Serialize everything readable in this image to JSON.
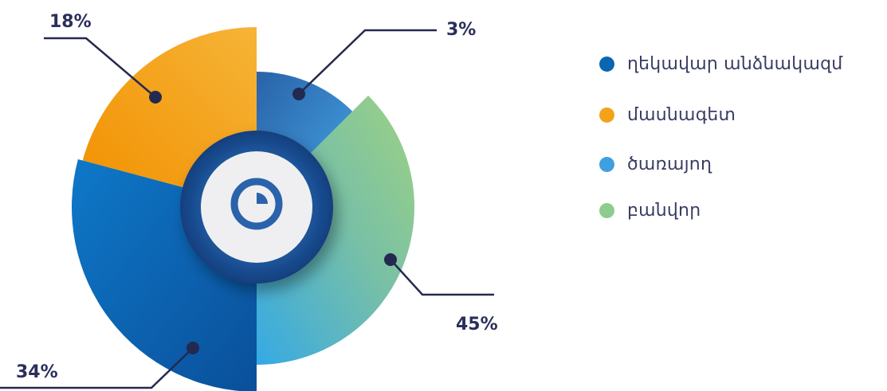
{
  "chart_data": {
    "type": "pie",
    "categories": [
      "ղեկավար անձնակազմ",
      "մասնագետ",
      "ծառայող",
      "բանվոր"
    ],
    "values": [
      34,
      18,
      3,
      45
    ],
    "data_labels": [
      "34%",
      "18%",
      "3%",
      "45%"
    ],
    "colors": [
      "#0a66b2",
      "#f5a21b",
      "#3fa0e0",
      "#8ccc8c"
    ],
    "legend_position": "right"
  },
  "legend": {
    "items": [
      {
        "label": "ղեկավար անձնակազմ",
        "color": "#0a66b2"
      },
      {
        "label": "մասնագետ",
        "color": "#f5a21b"
      },
      {
        "label": "ծառայող",
        "color": "#3fa0e0"
      },
      {
        "label": "բանվոր",
        "color": "#8ccc8c"
      }
    ]
  },
  "center_icon": "clock-pie-icon"
}
